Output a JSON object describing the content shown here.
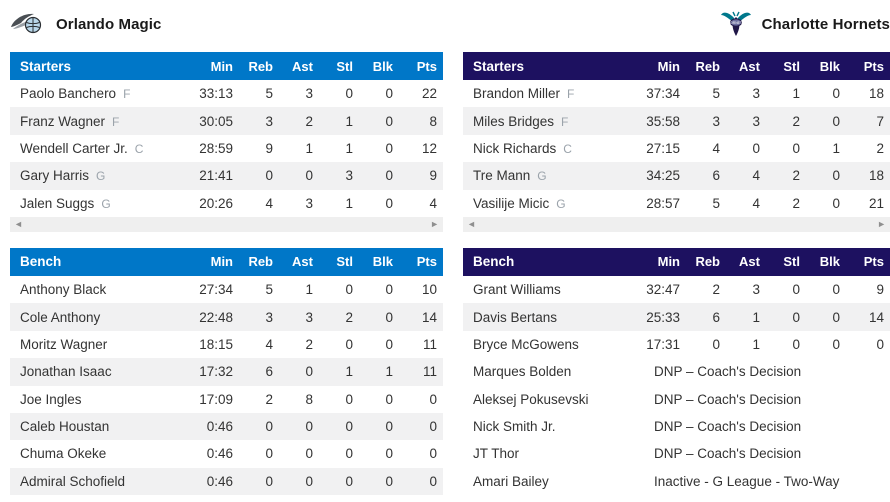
{
  "columns": [
    "Min",
    "Reb",
    "Ast",
    "Stl",
    "Blk",
    "Pts"
  ],
  "sections": {
    "starters_label": "Starters",
    "bench_label": "Bench"
  },
  "icons": {
    "scroll_left": "◄",
    "scroll_right": "►",
    "magic_logo": "magic-comet-basketball",
    "hornets_logo": "hornet"
  },
  "colors": {
    "magic_header": "#0077c8",
    "hornets_header": "#1d1160",
    "row_stripe": "#f1f1f2",
    "header_text": "#ffffff"
  },
  "teams": [
    {
      "name": "Orlando Magic",
      "header_color": "#0077c8",
      "starters": [
        {
          "name": "Paolo Banchero",
          "pos": "F",
          "stats": [
            "33:13",
            "5",
            "3",
            "0",
            "0",
            "22"
          ]
        },
        {
          "name": "Franz Wagner",
          "pos": "F",
          "stats": [
            "30:05",
            "3",
            "2",
            "1",
            "0",
            "8"
          ]
        },
        {
          "name": "Wendell Carter Jr.",
          "pos": "C",
          "stats": [
            "28:59",
            "9",
            "1",
            "1",
            "0",
            "12"
          ]
        },
        {
          "name": "Gary Harris",
          "pos": "G",
          "stats": [
            "21:41",
            "0",
            "0",
            "3",
            "0",
            "9"
          ]
        },
        {
          "name": "Jalen Suggs",
          "pos": "G",
          "stats": [
            "20:26",
            "4",
            "3",
            "1",
            "0",
            "4"
          ]
        }
      ],
      "bench": [
        {
          "name": "Anthony Black",
          "pos": "",
          "stats": [
            "27:34",
            "5",
            "1",
            "0",
            "0",
            "10"
          ]
        },
        {
          "name": "Cole Anthony",
          "pos": "",
          "stats": [
            "22:48",
            "3",
            "3",
            "2",
            "0",
            "14"
          ]
        },
        {
          "name": "Moritz Wagner",
          "pos": "",
          "stats": [
            "18:15",
            "4",
            "2",
            "0",
            "0",
            "11"
          ]
        },
        {
          "name": "Jonathan Isaac",
          "pos": "",
          "stats": [
            "17:32",
            "6",
            "0",
            "1",
            "1",
            "11"
          ]
        },
        {
          "name": "Joe Ingles",
          "pos": "",
          "stats": [
            "17:09",
            "2",
            "8",
            "0",
            "0",
            "0"
          ]
        },
        {
          "name": "Caleb Houstan",
          "pos": "",
          "stats": [
            "0:46",
            "0",
            "0",
            "0",
            "0",
            "0"
          ]
        },
        {
          "name": "Chuma Okeke",
          "pos": "",
          "stats": [
            "0:46",
            "0",
            "0",
            "0",
            "0",
            "0"
          ]
        },
        {
          "name": "Admiral Schofield",
          "pos": "",
          "stats": [
            "0:46",
            "0",
            "0",
            "0",
            "0",
            "0"
          ]
        }
      ]
    },
    {
      "name": "Charlotte Hornets",
      "header_color": "#1d1160",
      "starters": [
        {
          "name": "Brandon Miller",
          "pos": "F",
          "stats": [
            "37:34",
            "5",
            "3",
            "1",
            "0",
            "18"
          ]
        },
        {
          "name": "Miles Bridges",
          "pos": "F",
          "stats": [
            "35:58",
            "3",
            "3",
            "2",
            "0",
            "7"
          ]
        },
        {
          "name": "Nick Richards",
          "pos": "C",
          "stats": [
            "27:15",
            "4",
            "0",
            "0",
            "1",
            "2"
          ]
        },
        {
          "name": "Tre Mann",
          "pos": "G",
          "stats": [
            "34:25",
            "6",
            "4",
            "2",
            "0",
            "18"
          ]
        },
        {
          "name": "Vasilije Micic",
          "pos": "G",
          "stats": [
            "28:57",
            "5",
            "4",
            "2",
            "0",
            "21"
          ]
        }
      ],
      "bench": [
        {
          "name": "Grant Williams",
          "pos": "",
          "stats": [
            "32:47",
            "2",
            "3",
            "0",
            "0",
            "9"
          ]
        },
        {
          "name": "Davis Bertans",
          "pos": "",
          "stats": [
            "25:33",
            "6",
            "1",
            "0",
            "0",
            "14"
          ]
        },
        {
          "name": "Bryce McGowens",
          "pos": "",
          "stats": [
            "17:31",
            "0",
            "1",
            "0",
            "0",
            "0"
          ]
        },
        {
          "name": "Marques Bolden",
          "pos": "",
          "status": "DNP – Coach's Decision"
        },
        {
          "name": "Aleksej Pokusevski",
          "pos": "",
          "status": "DNP – Coach's Decision"
        },
        {
          "name": "Nick Smith Jr.",
          "pos": "",
          "status": "DNP – Coach's Decision"
        },
        {
          "name": "JT Thor",
          "pos": "",
          "status": "DNP – Coach's Decision"
        },
        {
          "name": "Amari Bailey",
          "pos": "",
          "status": "Inactive - G League - Two-Way"
        }
      ]
    }
  ]
}
